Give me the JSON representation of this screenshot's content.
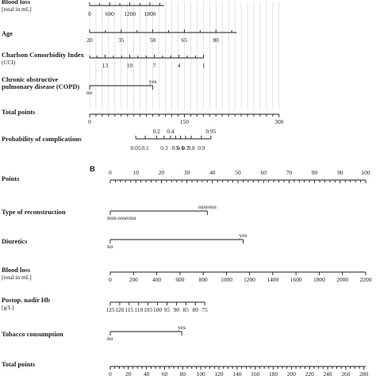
{
  "chart_data": [
    {
      "type": "nomogram",
      "panel": "",
      "rows": [
        {
          "id": "blood_loss_a",
          "label": [
            "Blood loss",
            "[total in mL]"
          ],
          "kind": "axis",
          "ticks": [
            {
              "text": "0",
              "pts": 0,
              "label_pos": "below"
            },
            {
              "text": "600",
              "pts": 31.8,
              "label_pos": "below"
            },
            {
              "text": "1200",
              "pts": 63.6,
              "label_pos": "below"
            },
            {
              "text": "1800",
              "pts": 95.4,
              "label_pos": "below"
            }
          ],
          "minor_ticks_pts": [
            15.9,
            47.7,
            79.5,
            111.3
          ],
          "end_pts": 118
        },
        {
          "id": "age",
          "label": [
            "Age"
          ],
          "kind": "axis",
          "ticks": [
            {
              "text": "20",
              "pts": 0,
              "label_pos": "below"
            },
            {
              "text": "35",
              "pts": 50,
              "label_pos": "below"
            },
            {
              "text": "50",
              "pts": 100,
              "label_pos": "below"
            },
            {
              "text": "65",
              "pts": 150,
              "label_pos": "below"
            },
            {
              "text": "80",
              "pts": 200,
              "label_pos": "below"
            }
          ],
          "minor_ticks_pts": [
            25,
            75,
            125,
            175,
            225
          ],
          "end_pts": 233
        },
        {
          "id": "cci",
          "label": [
            "Charlson Comorbidity Index",
            "(CCI)"
          ],
          "kind": "axis",
          "ticks": [
            {
              "text": "13",
              "pts": 24.5,
              "label_pos": "below"
            },
            {
              "text": "10",
              "pts": 63.5,
              "label_pos": "below"
            },
            {
              "text": "7",
              "pts": 102.5,
              "label_pos": "below"
            },
            {
              "text": "4",
              "pts": 141.5,
              "label_pos": "below"
            },
            {
              "text": "1",
              "pts": 180.5,
              "label_pos": "below"
            }
          ],
          "minor_ticks_pts": [
            0,
            11.5,
            37.5,
            50.5,
            76.5,
            89.5,
            115.5,
            128.5,
            154.5,
            167.5
          ],
          "end_pts": 180.5
        },
        {
          "id": "copd",
          "label": [
            "Chronic obstructive",
            "pulmonary disease (COPD)"
          ],
          "kind": "binary",
          "ticks": [
            {
              "text": "no",
              "pts": 0,
              "label_pos": "below"
            },
            {
              "text": "yes",
              "pts": 100,
              "label_pos": "above"
            }
          ],
          "end_pts": 100
        },
        {
          "id": "total_a",
          "label": [
            "Total points"
          ],
          "kind": "axis",
          "ticks": [
            {
              "text": "0",
              "pts": 0,
              "label_pos": "below"
            },
            {
              "text": "150",
              "pts": 150,
              "label_pos": "below"
            },
            {
              "text": "300",
              "pts": 300,
              "label_pos": "below"
            }
          ],
          "minor_ticks_pts": [
            10,
            20,
            30,
            40,
            50,
            60,
            70,
            80,
            90,
            100,
            110,
            120,
            130,
            140,
            160,
            170,
            180,
            190,
            200,
            210,
            220,
            230,
            240,
            250,
            260,
            270,
            280,
            290
          ],
          "end_pts": 300
        },
        {
          "id": "prob",
          "label": [
            "Probability of complications"
          ],
          "kind": "axis",
          "scale": "total_a",
          "ticks": [
            {
              "text": "0.05",
              "pts": 73,
              "label_pos": "below"
            },
            {
              "text": "0.1",
              "pts": 88,
              "label_pos": "below"
            },
            {
              "text": "0.2",
              "pts": 106,
              "label_pos": "above"
            },
            {
              "text": "0.3",
              "pts": 118,
              "label_pos": "below"
            },
            {
              "text": "0.4",
              "pts": 128,
              "label_pos": "above"
            },
            {
              "text": "0.5",
              "pts": 136,
              "label_pos": "below"
            },
            {
              "text": "0.6",
              "pts": 144,
              "label_pos": "below"
            },
            {
              "text": "0.7",
              "pts": 152,
              "label_pos": "below"
            },
            {
              "text": "0.8",
              "pts": 161,
              "label_pos": "below"
            },
            {
              "text": "0.9",
              "pts": 177,
              "label_pos": "below"
            },
            {
              "text": "0.95",
              "pts": 192,
              "label_pos": "above"
            }
          ],
          "minor_ticks_pts": [],
          "start_pts": 73,
          "end_pts": 192
        }
      ]
    },
    {
      "type": "nomogram",
      "panel": "B",
      "rows": [
        {
          "id": "points_b",
          "label": [
            "Points"
          ],
          "kind": "axis",
          "ticks": [
            {
              "text": "0",
              "pts": 0,
              "label_pos": "above"
            },
            {
              "text": "10",
              "pts": 10,
              "label_pos": "above"
            },
            {
              "text": "20",
              "pts": 20,
              "label_pos": "above"
            },
            {
              "text": "30",
              "pts": 30,
              "label_pos": "above"
            },
            {
              "text": "40",
              "pts": 40,
              "label_pos": "above"
            },
            {
              "text": "50",
              "pts": 50,
              "label_pos": "above"
            },
            {
              "text": "60",
              "pts": 60,
              "label_pos": "above"
            },
            {
              "text": "70",
              "pts": 70,
              "label_pos": "above"
            },
            {
              "text": "80",
              "pts": 80,
              "label_pos": "above"
            },
            {
              "text": "90",
              "pts": 90,
              "label_pos": "above"
            },
            {
              "text": "100",
              "pts": 100,
              "label_pos": "above"
            }
          ],
          "minor_ticks_pts": [
            2,
            4,
            6,
            8,
            12,
            14,
            16,
            18,
            22,
            24,
            26,
            28,
            32,
            34,
            36,
            38,
            42,
            44,
            46,
            48,
            52,
            54,
            56,
            58,
            62,
            64,
            66,
            68,
            72,
            74,
            76,
            78,
            82,
            84,
            86,
            88,
            92,
            94,
            96,
            98
          ],
          "end_pts": 100
        },
        {
          "id": "reconstruction",
          "label": [
            "Type of reconstruction"
          ],
          "kind": "binary",
          "ticks": [
            {
              "text": "non-osseous",
              "pts": 0,
              "label_pos": "below"
            },
            {
              "text": "osseous",
              "pts": 38,
              "label_pos": "above"
            }
          ],
          "end_pts": 38
        },
        {
          "id": "diuretics",
          "label": [
            "Diuretics"
          ],
          "kind": "binary",
          "ticks": [
            {
              "text": "no",
              "pts": 0,
              "label_pos": "below"
            },
            {
              "text": "yes",
              "pts": 52,
              "label_pos": "above"
            }
          ],
          "end_pts": 52
        },
        {
          "id": "blood_loss_b",
          "label": [
            "Blood loss",
            "[total in mL]"
          ],
          "kind": "axis",
          "ticks": [
            {
              "text": "0",
              "pts": 0,
              "label_pos": "below"
            },
            {
              "text": "200",
              "pts": 9.1,
              "label_pos": "below"
            },
            {
              "text": "400",
              "pts": 18.2,
              "label_pos": "below"
            },
            {
              "text": "600",
              "pts": 27.3,
              "label_pos": "below"
            },
            {
              "text": "800",
              "pts": 36.4,
              "label_pos": "below"
            },
            {
              "text": "1000",
              "pts": 45.5,
              "label_pos": "below"
            },
            {
              "text": "1200",
              "pts": 54.5,
              "label_pos": "below"
            },
            {
              "text": "1400",
              "pts": 63.6,
              "label_pos": "below"
            },
            {
              "text": "1600",
              "pts": 72.7,
              "label_pos": "below"
            },
            {
              "text": "1800",
              "pts": 81.8,
              "label_pos": "below"
            },
            {
              "text": "2000",
              "pts": 90.9,
              "label_pos": "below"
            },
            {
              "text": "2200",
              "pts": 100,
              "label_pos": "below"
            }
          ],
          "minor_ticks_pts": [],
          "end_pts": 100
        },
        {
          "id": "nadir_hb",
          "label": [
            "Postop. nadir Hb",
            "[g/L]"
          ],
          "kind": "axis",
          "ticks": [
            {
              "text": "125",
              "pts": 0,
              "label_pos": "below"
            },
            {
              "text": "120",
              "pts": 3.7,
              "label_pos": "below"
            },
            {
              "text": "115",
              "pts": 7.4,
              "label_pos": "below"
            },
            {
              "text": "110",
              "pts": 11.1,
              "label_pos": "below"
            },
            {
              "text": "105",
              "pts": 14.8,
              "label_pos": "below"
            },
            {
              "text": "100",
              "pts": 18.5,
              "label_pos": "below"
            },
            {
              "text": "95",
              "pts": 22.2,
              "label_pos": "below"
            },
            {
              "text": "90",
              "pts": 25.9,
              "label_pos": "below"
            },
            {
              "text": "85",
              "pts": 29.6,
              "label_pos": "below"
            },
            {
              "text": "80",
              "pts": 33.3,
              "label_pos": "below"
            },
            {
              "text": "75",
              "pts": 37,
              "label_pos": "below"
            }
          ],
          "minor_ticks_pts": [],
          "end_pts": 37
        },
        {
          "id": "tobacco",
          "label": [
            "Tobacco consumption"
          ],
          "kind": "binary",
          "ticks": [
            {
              "text": "no",
              "pts": 0,
              "label_pos": "below"
            },
            {
              "text": "yes",
              "pts": 28,
              "label_pos": "above"
            }
          ],
          "end_pts": 28
        },
        {
          "id": "total_b",
          "label": [
            "Total points"
          ],
          "kind": "axis",
          "ticks": [
            {
              "text": "0",
              "pts": 0,
              "label_pos": "below"
            },
            {
              "text": "20",
              "pts": 20,
              "label_pos": "below"
            },
            {
              "text": "40",
              "pts": 40,
              "label_pos": "below"
            },
            {
              "text": "60",
              "pts": 60,
              "label_pos": "below"
            },
            {
              "text": "80",
              "pts": 80,
              "label_pos": "below"
            },
            {
              "text": "100",
              "pts": 100,
              "label_pos": "below"
            },
            {
              "text": "120",
              "pts": 120,
              "label_pos": "below"
            },
            {
              "text": "140",
              "pts": 140,
              "label_pos": "below"
            },
            {
              "text": "160",
              "pts": 160,
              "label_pos": "below"
            },
            {
              "text": "180",
              "pts": 180,
              "label_pos": "below"
            },
            {
              "text": "200",
              "pts": 200,
              "label_pos": "below"
            },
            {
              "text": "220",
              "pts": 220,
              "label_pos": "below"
            },
            {
              "text": "240",
              "pts": 240,
              "label_pos": "below"
            },
            {
              "text": "260",
              "pts": 260,
              "label_pos": "below"
            },
            {
              "text": "280",
              "pts": 280,
              "label_pos": "below"
            }
          ],
          "minor_ticks_pts": [
            5,
            10,
            15,
            25,
            30,
            35,
            45,
            50,
            55,
            65,
            70,
            75,
            85,
            90,
            95,
            105,
            110,
            115,
            125,
            130,
            135,
            145,
            150,
            155,
            165,
            170,
            175,
            185,
            190,
            195,
            205,
            210,
            215,
            225,
            230,
            235,
            245,
            250,
            255,
            265,
            270,
            275
          ],
          "end_pts": 282
        }
      ]
    }
  ]
}
